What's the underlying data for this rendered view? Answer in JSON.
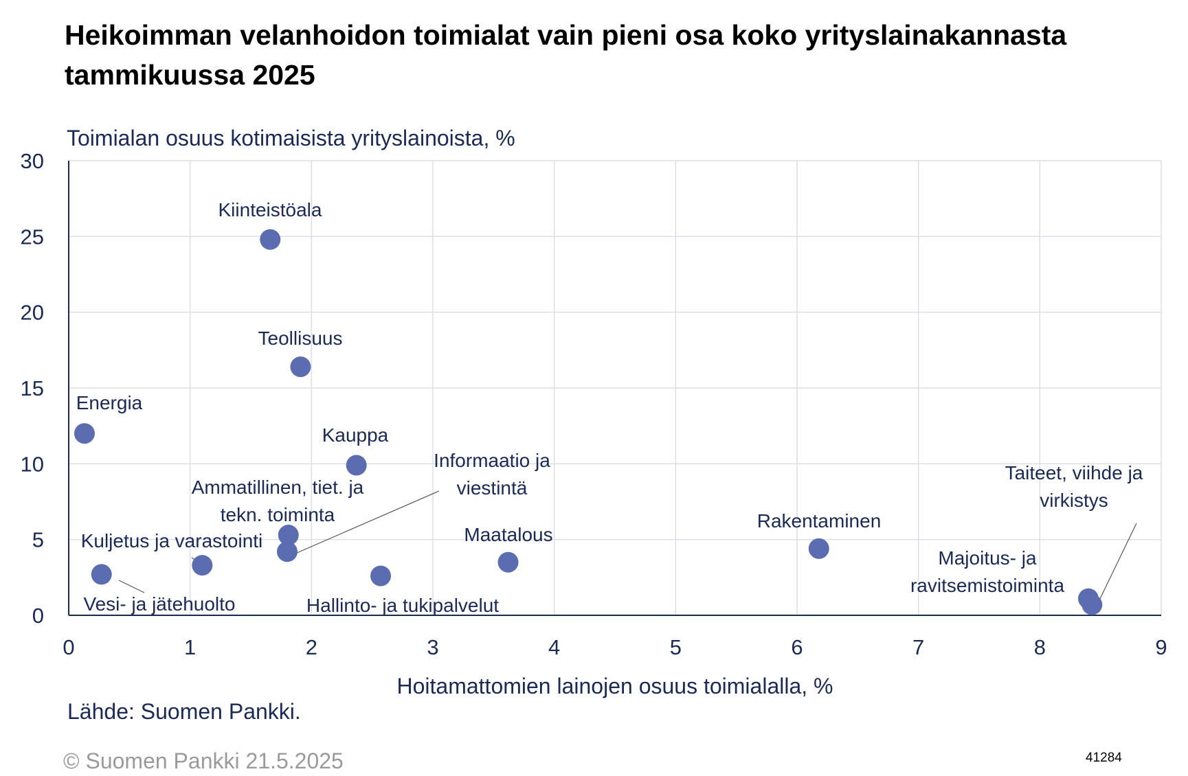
{
  "colors": {
    "point": "#5b6db0",
    "text": "#1b2a55",
    "grid": "#dcdee6",
    "axis": "#1b2a55",
    "leader": "#555555"
  },
  "chart_data": {
    "type": "scatter",
    "title": "Heikoimman velanhoidon toimialat vain pieni osa koko yrityslainakannasta tammikuussa 2025",
    "xlabel": "Hoitamattomien lainojen osuus toimialalla, %",
    "ylabel": "Toimialan osuus kotimaisista yrityslainoista, %",
    "xlim": [
      0,
      9
    ],
    "ylim": [
      0,
      30
    ],
    "xticks": [
      "0",
      "1",
      "2",
      "3",
      "4",
      "5",
      "6",
      "7",
      "8",
      "9"
    ],
    "yticks": [
      "0",
      "5",
      "10",
      "15",
      "20",
      "25",
      "30"
    ],
    "grid": true,
    "legend": "none",
    "points": [
      {
        "label": "Kiinteistöala",
        "x": 1.66,
        "y": 24.8
      },
      {
        "label": "Teollisuus",
        "x": 1.91,
        "y": 16.4
      },
      {
        "label": "Energia",
        "x": 0.13,
        "y": 12.0
      },
      {
        "label": "Kauppa",
        "x": 2.37,
        "y": 9.9
      },
      {
        "label": "Ammatillinen, tiet. ja tekn. toiminta",
        "x": 1.81,
        "y": 5.3
      },
      {
        "label": "Informaatio ja viestintä",
        "x": 1.8,
        "y": 4.2
      },
      {
        "label": "Kuljetus ja varastointi",
        "x": 1.1,
        "y": 3.3
      },
      {
        "label": "Vesi- ja jätehuolto",
        "x": 0.27,
        "y": 2.7
      },
      {
        "label": "Hallinto- ja tukipalvelut",
        "x": 2.57,
        "y": 2.6
      },
      {
        "label": "Maatalous",
        "x": 3.62,
        "y": 3.5
      },
      {
        "label": "Rakentaminen",
        "x": 6.18,
        "y": 4.4
      },
      {
        "label": "Majoitus- ja ravitsemistoiminta",
        "x": 8.4,
        "y": 1.1
      },
      {
        "label": "Taiteet, viihde ja virkistys",
        "x": 8.43,
        "y": 0.7
      }
    ]
  },
  "source": "Lähde: Suomen Pankki.",
  "copyright": "© Suomen Pankki 21.5.2025",
  "chart_code": "41284"
}
